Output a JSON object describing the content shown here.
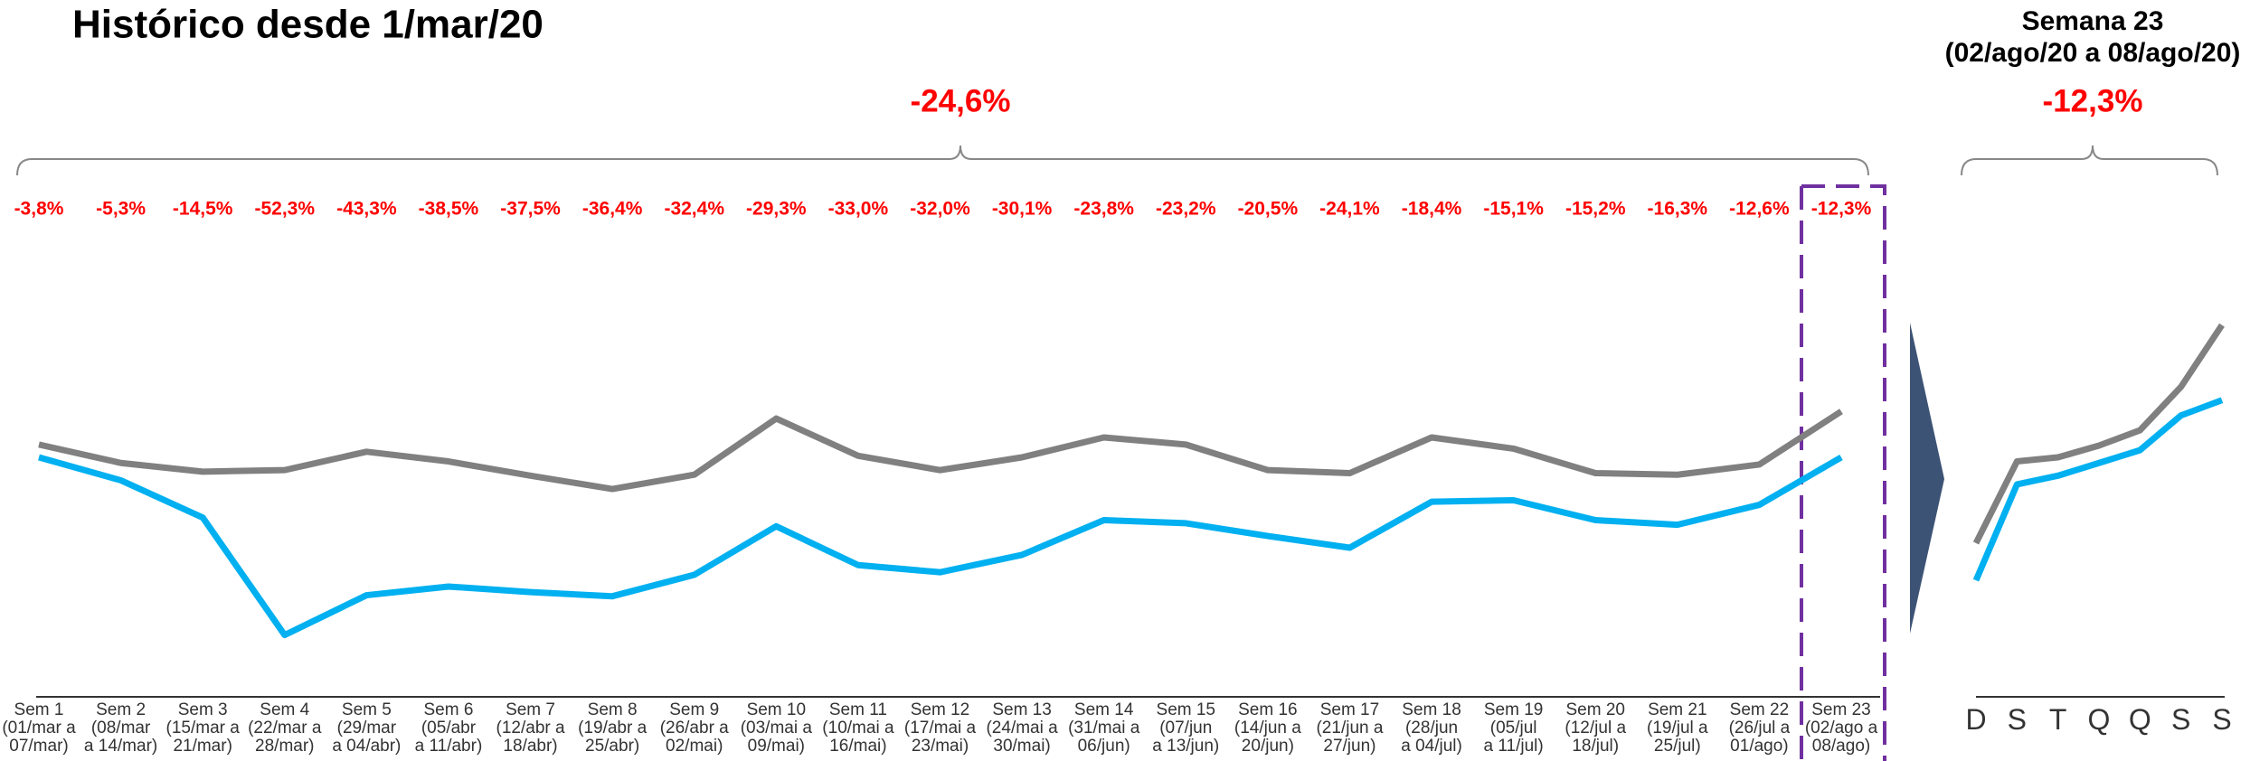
{
  "chart_data": [
    {
      "type": "line",
      "title": "Histórico desde 1/mar/20",
      "annotations": {
        "total": "-24,6%",
        "weekly": [
          "-3,8%",
          "-5,3%",
          "-14,5%",
          "-52,3%",
          "-43,3%",
          "-38,5%",
          "-37,5%",
          "-36,4%",
          "-32,4%",
          "-29,3%",
          "-33,0%",
          "-32,0%",
          "-30,1%",
          "-23,8%",
          "-23,2%",
          "-20,5%",
          "-24,1%",
          "-18,4%",
          "-15,1%",
          "-15,2%",
          "-16,3%",
          "-12,6%",
          "-12,3%"
        ]
      },
      "categories": [
        "Sem 1\n(01/mar a\n07/mar)",
        "Sem 2\n(08/mar\na 14/mar)",
        "Sem 3\n(15/mar a\n21/mar)",
        "Sem 4\n(22/mar a\n28/mar)",
        "Sem 5\n(29/mar\na 04/abr)",
        "Sem 6\n(05/abr\na 11/abr)",
        "Sem 7\n(12/abr a\n18/abr)",
        "Sem 8\n(19/abr a\n25/abr)",
        "Sem 9\n(26/abr a\n02/mai)",
        "Sem 10\n(03/mai a\n09/mai)",
        "Sem 11\n(10/mai a\n16/mai)",
        "Sem 12\n(17/mai a\n23/mai)",
        "Sem 13\n(24/mai a\n30/mai)",
        "Sem 14\n(31/mai a\n06/jun)",
        "Sem 15\n(07/jun\na 13/jun)",
        "Sem 16\n(14/jun a\n20/jun)",
        "Sem 17\n(21/jun a\n27/jun)",
        "Sem 18\n(28/jun\na 04/jul)",
        "Sem 19\n(05/jul\na 11/jul)",
        "Sem 20\n(12/jul a\n18/jul)",
        "Sem 21\n(19/jul a\n25/jul)",
        "Sem 22\n(26/jul a\n01/ago)",
        "Sem 23\n(02/ago a\n08/ago)"
      ],
      "series": [
        {
          "color": "#808080",
          "values": [
            49.4,
            45.8,
            44.1,
            44.4,
            48.0,
            46.1,
            43.3,
            40.7,
            43.5,
            54.5,
            47.2,
            44.4,
            46.9,
            50.8,
            49.4,
            44.4,
            43.8,
            50.8,
            48.6,
            43.8,
            43.5,
            45.5,
            55.9
          ]
        },
        {
          "color": "#00b0f0",
          "values": [
            46.9,
            42.4,
            35.1,
            12.1,
            19.9,
            21.6,
            20.5,
            19.7,
            23.9,
            33.4,
            25.8,
            24.4,
            27.8,
            34.6,
            34.0,
            31.5,
            29.2,
            38.2,
            38.5,
            34.6,
            33.7,
            37.6,
            46.9
          ]
        }
      ],
      "ylim": [
        0,
        100
      ]
    },
    {
      "type": "line",
      "title": "Semana 23",
      "subtitle": "(02/ago/20 a 08/ago/20)",
      "annotations": {
        "total": "-12,3%"
      },
      "categories": [
        "D",
        "S",
        "T",
        "Q",
        "Q",
        "S",
        "S"
      ],
      "series": [
        {
          "color": "#808080",
          "values": [
            30.1,
            46.1,
            46.9,
            49.2,
            52.2,
            60.7,
            72.8
          ]
        },
        {
          "color": "#00b0f0",
          "values": [
            22.8,
            41.6,
            43.3,
            45.8,
            48.3,
            55.1,
            58.1
          ]
        }
      ],
      "ylim": [
        0,
        100
      ]
    }
  ]
}
